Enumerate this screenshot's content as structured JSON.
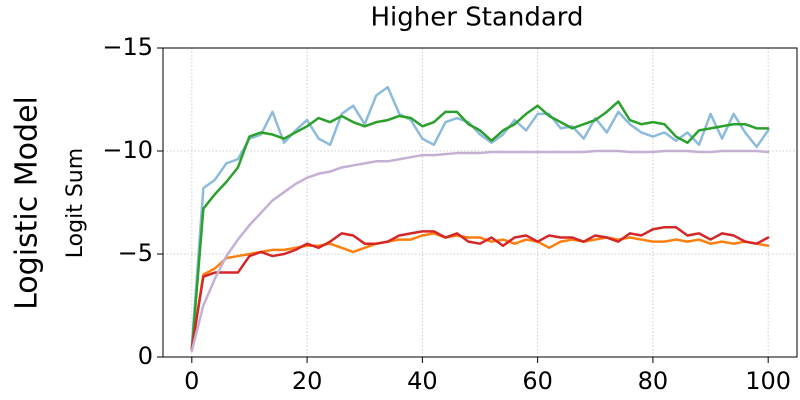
{
  "chart_data": {
    "type": "line",
    "title": "Higher Standard",
    "ylabel": "Logit Sum",
    "row_label": "Logistic Model",
    "x": [
      0,
      2,
      4,
      6,
      8,
      10,
      12,
      14,
      16,
      18,
      20,
      22,
      24,
      26,
      28,
      30,
      32,
      34,
      36,
      38,
      40,
      42,
      44,
      46,
      48,
      50,
      52,
      54,
      56,
      58,
      60,
      62,
      64,
      66,
      68,
      70,
      72,
      74,
      76,
      78,
      80,
      82,
      84,
      86,
      88,
      90,
      92,
      94,
      96,
      98,
      100
    ],
    "xlim": [
      -5,
      105
    ],
    "xticks": [
      0,
      20,
      40,
      60,
      80,
      100
    ],
    "ylim": [
      0,
      -15
    ],
    "yticks": [
      {
        "value": -15,
        "label": "−15"
      },
      {
        "value": -10,
        "label": "−10"
      },
      {
        "value": -5,
        "label": "−5"
      },
      {
        "value": 0,
        "label": "0"
      }
    ],
    "grid": true,
    "series": [
      {
        "color": "#8cbbdc",
        "values": [
          -0.5,
          -8.2,
          -8.6,
          -9.4,
          -9.6,
          -10.6,
          -10.8,
          -11.9,
          -10.4,
          -11.0,
          -11.5,
          -10.6,
          -10.3,
          -11.8,
          -12.2,
          -11.3,
          -12.7,
          -13.1,
          -11.8,
          -11.5,
          -10.6,
          -10.3,
          -11.4,
          -11.6,
          -11.4,
          -10.8,
          -10.4,
          -10.8,
          -11.5,
          -11.0,
          -11.8,
          -11.8,
          -11.1,
          -11.2,
          -10.6,
          -11.6,
          -10.9,
          -11.9,
          -11.3,
          -10.9,
          -10.7,
          -10.9,
          -10.5,
          -10.9,
          -10.3,
          -11.8,
          -10.6,
          -11.8,
          -10.9,
          -10.2,
          -11.0
        ]
      },
      {
        "color": "#ff7f0e",
        "values": [
          -0.4,
          -4.0,
          -4.3,
          -4.8,
          -4.9,
          -5.0,
          -5.1,
          -5.2,
          -5.2,
          -5.3,
          -5.4,
          -5.4,
          -5.5,
          -5.3,
          -5.1,
          -5.3,
          -5.5,
          -5.6,
          -5.7,
          -5.7,
          -5.9,
          -6.0,
          -5.8,
          -5.9,
          -5.8,
          -5.8,
          -5.6,
          -5.7,
          -5.5,
          -5.7,
          -5.6,
          -5.3,
          -5.6,
          -5.7,
          -5.6,
          -5.7,
          -5.8,
          -5.7,
          -5.8,
          -5.7,
          -5.6,
          -5.6,
          -5.7,
          -5.6,
          -5.7,
          -5.5,
          -5.6,
          -5.5,
          -5.6,
          -5.5,
          -5.4
        ]
      },
      {
        "color": "#2ca02c",
        "values": [
          -0.3,
          -7.2,
          -7.9,
          -8.5,
          -9.2,
          -10.7,
          -10.9,
          -10.8,
          -10.6,
          -10.9,
          -11.2,
          -11.6,
          -11.4,
          -11.7,
          -11.4,
          -11.2,
          -11.4,
          -11.5,
          -11.7,
          -11.6,
          -11.2,
          -11.4,
          -11.9,
          -11.9,
          -11.3,
          -11.0,
          -10.5,
          -11.0,
          -11.3,
          -11.8,
          -12.2,
          -11.7,
          -11.4,
          -11.1,
          -11.3,
          -11.5,
          -11.9,
          -12.4,
          -11.5,
          -11.3,
          -11.4,
          -11.3,
          -10.7,
          -10.4,
          -11.0,
          -11.1,
          -11.2,
          -11.3,
          -11.3,
          -11.1,
          -11.1
        ]
      },
      {
        "color": "#d62728",
        "values": [
          -0.4,
          -3.9,
          -4.1,
          -4.1,
          -4.1,
          -4.9,
          -5.1,
          -4.9,
          -5.0,
          -5.2,
          -5.5,
          -5.3,
          -5.6,
          -6.0,
          -5.9,
          -5.5,
          -5.5,
          -5.6,
          -5.9,
          -6.0,
          -6.1,
          -6.1,
          -5.8,
          -6.0,
          -5.6,
          -5.5,
          -5.8,
          -5.4,
          -5.8,
          -5.9,
          -5.6,
          -5.9,
          -5.8,
          -5.8,
          -5.6,
          -5.9,
          -5.8,
          -5.6,
          -6.0,
          -5.9,
          -6.2,
          -6.3,
          -6.3,
          -5.9,
          -6.0,
          -5.7,
          -6.0,
          -5.9,
          -5.6,
          -5.5,
          -5.8
        ]
      },
      {
        "color": "#c5b0d5",
        "values": [
          -0.3,
          -2.5,
          -3.8,
          -4.9,
          -5.7,
          -6.4,
          -7.0,
          -7.6,
          -8.0,
          -8.4,
          -8.7,
          -8.9,
          -9.0,
          -9.2,
          -9.3,
          -9.4,
          -9.5,
          -9.5,
          -9.6,
          -9.7,
          -9.8,
          -9.8,
          -9.85,
          -9.9,
          -9.9,
          -9.9,
          -9.95,
          -9.95,
          -9.95,
          -9.95,
          -9.95,
          -9.95,
          -9.95,
          -9.95,
          -9.95,
          -10.0,
          -10.0,
          -10.0,
          -9.95,
          -9.95,
          -9.95,
          -10.0,
          -10.0,
          -10.0,
          -9.95,
          -9.95,
          -10.0,
          -10.0,
          -10.0,
          -10.0,
          -9.95
        ]
      }
    ]
  }
}
